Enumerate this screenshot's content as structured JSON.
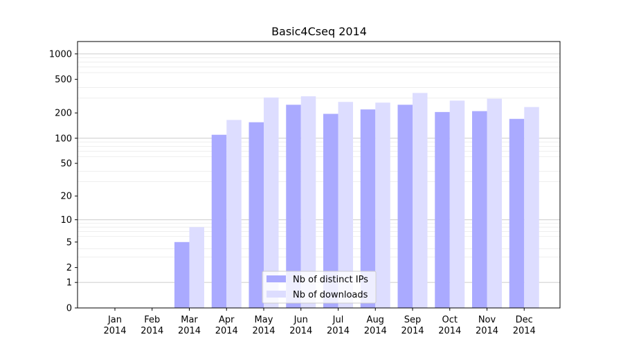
{
  "chart_data": {
    "type": "bar",
    "title": "Basic4Cseq 2014",
    "xlabel": "",
    "ylabel": "",
    "yscale": "log(1+y)",
    "ylim": [
      0,
      1400
    ],
    "grid": true,
    "legend_position": "lower center",
    "categories": [
      [
        "Jan",
        "2014"
      ],
      [
        "Feb",
        "2014"
      ],
      [
        "Mar",
        "2014"
      ],
      [
        "Apr",
        "2014"
      ],
      [
        "May",
        "2014"
      ],
      [
        "Jun",
        "2014"
      ],
      [
        "Jul",
        "2014"
      ],
      [
        "Aug",
        "2014"
      ],
      [
        "Sep",
        "2014"
      ],
      [
        "Oct",
        "2014"
      ],
      [
        "Nov",
        "2014"
      ],
      [
        "Dec",
        "2014"
      ]
    ],
    "y_ticks": [
      0,
      1,
      2,
      5,
      10,
      20,
      50,
      100,
      200,
      500,
      1000
    ],
    "series": [
      {
        "name": "Nb of distinct IPs",
        "color": "#aaaaff",
        "values": [
          0,
          0,
          5,
          110,
          155,
          250,
          195,
          220,
          250,
          205,
          210,
          170
        ]
      },
      {
        "name": "Nb of downloads",
        "color": "#ddddff",
        "values": [
          0,
          0,
          8,
          165,
          305,
          315,
          270,
          265,
          345,
          280,
          295,
          235
        ]
      }
    ]
  }
}
